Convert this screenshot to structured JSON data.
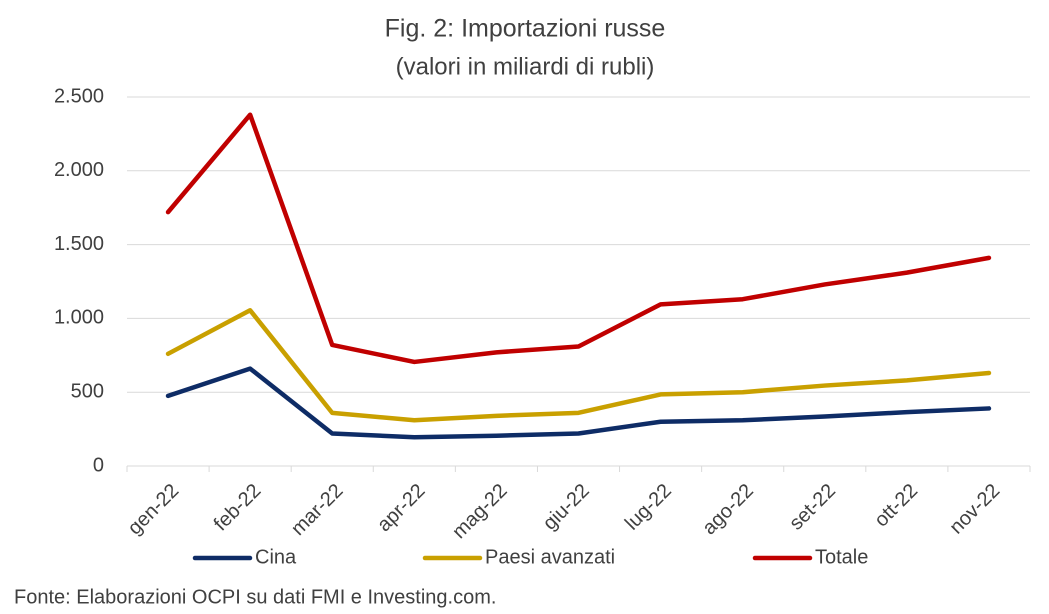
{
  "chart_data": {
    "type": "line",
    "title": "Fig. 2: Importazioni russe",
    "subtitle": "(valori in miliardi di rubli)",
    "source": "Fonte: Elaborazioni OCPI su dati FMI e Investing.com.",
    "categories": [
      "gen-22",
      "feb-22",
      "mar-22",
      "apr-22",
      "mag-22",
      "giu-22",
      "lug-22",
      "ago-22",
      "set-22",
      "ott-22",
      "nov-22"
    ],
    "series": [
      {
        "name": "Cina",
        "color": "#0e2c66",
        "values": [
          475,
          660,
          220,
          195,
          205,
          220,
          300,
          310,
          335,
          365,
          390
        ]
      },
      {
        "name": "Paesi avanzati",
        "color": "#c9a000",
        "values": [
          760,
          1055,
          360,
          310,
          340,
          360,
          485,
          500,
          545,
          580,
          630
        ]
      },
      {
        "name": "Totale",
        "color": "#c00000",
        "values": [
          1720,
          2380,
          820,
          705,
          770,
          810,
          1095,
          1130,
          1230,
          1310,
          1410
        ]
      }
    ],
    "ylim": [
      0,
      2500
    ],
    "yticks": [
      0,
      500,
      {
        "value": 1000,
        "label": "1.000"
      },
      {
        "value": 1500,
        "label": "1.500"
      },
      {
        "value": 2000,
        "label": "2.000"
      },
      {
        "value": 2500,
        "label": "2.500"
      }
    ],
    "grid": true
  }
}
